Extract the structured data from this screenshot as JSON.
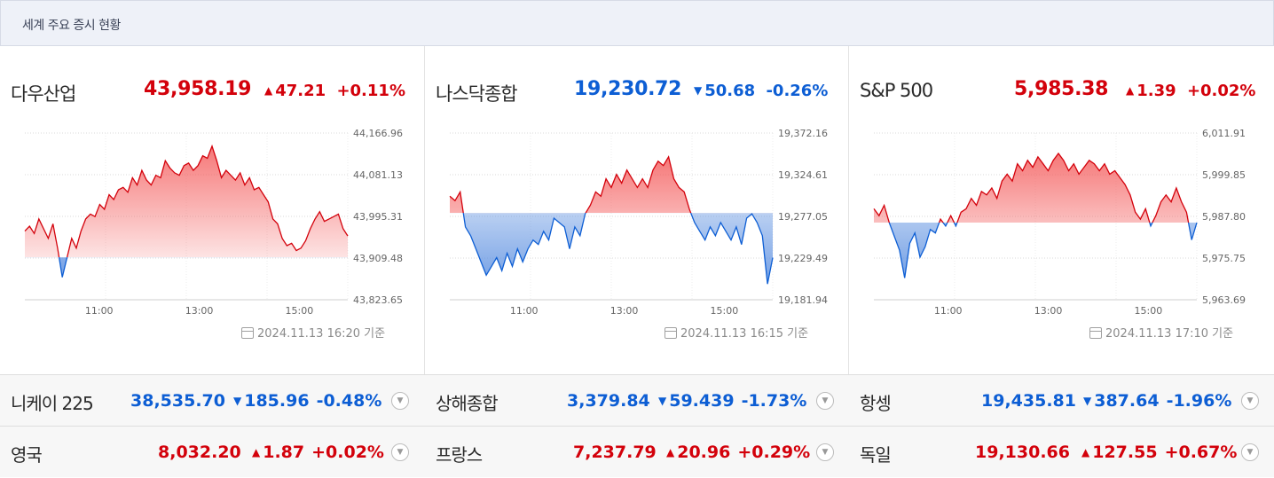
{
  "header": {
    "title": "세계 주요 증시 현황"
  },
  "colors": {
    "up": "#d3010b",
    "down": "#0d5ed4",
    "up_fill": "#f46060",
    "down_fill": "#5b8fe0"
  },
  "icons": {
    "up": "▲",
    "down": "▼",
    "expand": "chevron-down-icon",
    "timestamp": "calendar-clock-icon"
  },
  "panels": [
    {
      "name": "다우산업",
      "value": "43,958.19",
      "direction": "up",
      "change": "47.21",
      "change_pct": "+0.11%",
      "timestamp": "2024.11.13 16:20 기준",
      "chart_data": {
        "type": "area",
        "x_ticks": [
          "11:00",
          "13:00",
          "15:00"
        ],
        "y_ticks": [
          "44,166.96",
          "44,081.13",
          "43,995.31",
          "43,909.48",
          "43,823.65"
        ],
        "ylim": [
          43823.65,
          44166.96
        ],
        "baseline": 43911,
        "values": [
          43965,
          43975,
          43960,
          43990,
          43970,
          43950,
          43980,
          43930,
          43870,
          43910,
          43950,
          43930,
          43965,
          43990,
          44000,
          43995,
          44020,
          44010,
          44040,
          44030,
          44050,
          44055,
          44045,
          44075,
          44060,
          44090,
          44070,
          44060,
          44080,
          44075,
          44110,
          44095,
          44085,
          44080,
          44100,
          44105,
          44090,
          44100,
          44120,
          44115,
          44140,
          44110,
          44075,
          44090,
          44080,
          44070,
          44085,
          44060,
          44075,
          44050,
          44055,
          44040,
          44025,
          43990,
          43980,
          43950,
          43935,
          43940,
          43925,
          43930,
          43945,
          43970,
          43990,
          44005,
          43985,
          43990,
          43995,
          44000,
          43970,
          43955
        ]
      }
    },
    {
      "name": "나스닥종합",
      "value": "19,230.72",
      "direction": "down",
      "change": "50.68",
      "change_pct": "-0.26%",
      "timestamp": "2024.11.13 16:15 기준",
      "chart_data": {
        "type": "area",
        "x_ticks": [
          "11:00",
          "13:00",
          "15:00"
        ],
        "y_ticks": [
          "19,372.16",
          "19,324.61",
          "19,277.05",
          "19,229.49",
          "19,181.94"
        ],
        "ylim": [
          19181.94,
          19372.16
        ],
        "baseline": 19281,
        "values": [
          19300,
          19295,
          19305,
          19265,
          19255,
          19240,
          19225,
          19210,
          19220,
          19230,
          19215,
          19235,
          19220,
          19240,
          19225,
          19240,
          19250,
          19245,
          19260,
          19250,
          19275,
          19270,
          19265,
          19240,
          19265,
          19255,
          19280,
          19290,
          19305,
          19300,
          19320,
          19310,
          19325,
          19315,
          19330,
          19320,
          19310,
          19320,
          19310,
          19330,
          19340,
          19335,
          19345,
          19320,
          19310,
          19305,
          19285,
          19270,
          19260,
          19250,
          19265,
          19255,
          19270,
          19260,
          19250,
          19265,
          19245,
          19275,
          19280,
          19270,
          19255,
          19200,
          19230
        ]
      }
    },
    {
      "name": "S&P 500",
      "value": "5,985.38",
      "direction": "up",
      "change": "1.39",
      "change_pct": "+0.02%",
      "timestamp": "2024.11.13 17:10 기준",
      "chart_data": {
        "type": "area",
        "x_ticks": [
          "11:00",
          "13:00",
          "15:00"
        ],
        "y_ticks": [
          "6,011.91",
          "5,999.85",
          "5,987.80",
          "5,975.75",
          "5,963.69"
        ],
        "ylim": [
          5963.69,
          6011.91
        ],
        "baseline": 5986,
        "values": [
          5990,
          5988,
          5991,
          5986,
          5982,
          5978,
          5970,
          5980,
          5983,
          5976,
          5979,
          5984,
          5983,
          5987,
          5985,
          5988,
          5985,
          5989,
          5990,
          5993,
          5991,
          5995,
          5994,
          5996,
          5993,
          5998,
          6000,
          5998,
          6003,
          6001,
          6004,
          6002,
          6005,
          6003,
          6001,
          6004,
          6006,
          6004,
          6001,
          6003,
          6000,
          6002,
          6004,
          6003,
          6001,
          6003,
          6000,
          6001,
          5999,
          5997,
          5994,
          5989,
          5987,
          5990,
          5985,
          5988,
          5992,
          5994,
          5992,
          5996,
          5992,
          5989,
          5981,
          5986
        ]
      }
    }
  ],
  "rows": [
    [
      {
        "name": "니케이 225",
        "value": "38,535.70",
        "direction": "down",
        "change": "185.96",
        "change_pct": "-0.48%"
      },
      {
        "name": "상해종합",
        "value": "3,379.84",
        "direction": "down",
        "change": "59.439",
        "change_pct": "-1.73%"
      },
      {
        "name": "항셍",
        "value": "19,435.81",
        "direction": "down",
        "change": "387.64",
        "change_pct": "-1.96%"
      }
    ],
    [
      {
        "name": "영국",
        "value": "8,032.20",
        "direction": "up",
        "change": "1.87",
        "change_pct": "+0.02%"
      },
      {
        "name": "프랑스",
        "value": "7,237.79",
        "direction": "up",
        "change": "20.96",
        "change_pct": "+0.29%"
      },
      {
        "name": "독일",
        "value": "19,130.66",
        "direction": "up",
        "change": "127.55",
        "change_pct": "+0.67%"
      }
    ]
  ]
}
